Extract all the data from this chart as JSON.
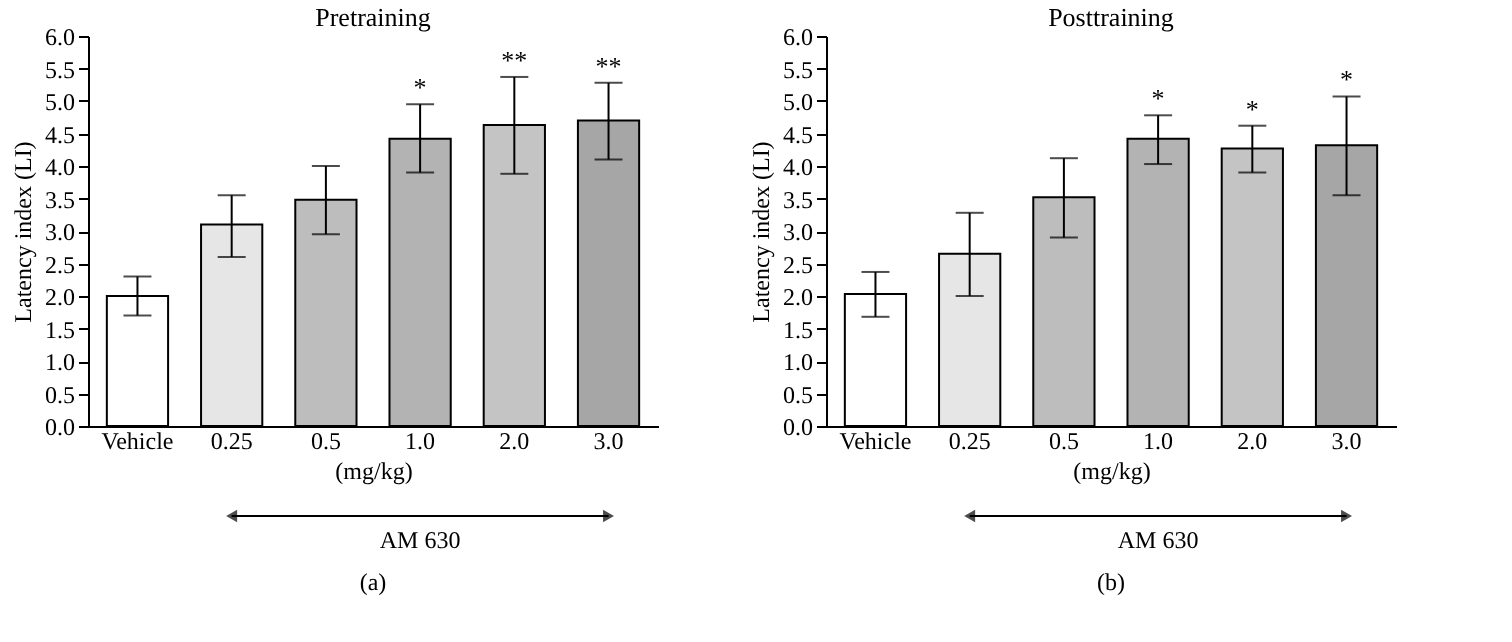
{
  "chart_data": [
    {
      "type": "bar",
      "title": "Pretraining",
      "xlabel": "(mg/kg)",
      "ylabel": "Latency index (LI)",
      "categories": [
        "Vehicle",
        "0.25",
        "0.5",
        "1.0",
        "2.0",
        "3.0"
      ],
      "values": [
        2.0,
        3.1,
        3.48,
        4.42,
        4.63,
        4.7
      ],
      "errors": [
        [
          1.7,
          2.3
        ],
        [
          2.6,
          3.55
        ],
        [
          2.95,
          4.0
        ],
        [
          3.9,
          4.95
        ],
        [
          3.88,
          5.37
        ],
        [
          4.1,
          5.28
        ]
      ],
      "colors": [
        "#ffffff",
        "#e6e6e6",
        "#bdbdbd",
        "#b3b3b3",
        "#c4c4c4",
        "#a6a6a6"
      ],
      "ylim": [
        0,
        6
      ],
      "yticks": [
        {
          "value": 0,
          "label": "0.0"
        },
        {
          "value": 0.5,
          "label": "0.5"
        },
        {
          "value": 1,
          "label": "1.0"
        },
        {
          "value": 1.5,
          "label": "1.5"
        },
        {
          "value": 2,
          "label": "2.0"
        },
        {
          "value": 2.5,
          "label": "2.5"
        },
        {
          "value": 3,
          "label": "3.0"
        },
        {
          "value": 3.5,
          "label": "3.5"
        },
        {
          "value": 4,
          "label": "4.0"
        },
        {
          "value": 4.5,
          "label": "4.5"
        },
        {
          "value": 5,
          "label": "5.0"
        },
        {
          "value": 5.5,
          "label": "5.5"
        },
        {
          "value": 6,
          "label": "6.0"
        }
      ],
      "annotations": [
        {
          "text": "*",
          "x": "1.0",
          "y": 4.95
        },
        {
          "text": "**",
          "x": "2.0",
          "y": 5.37
        },
        {
          "text": "**",
          "x": "3.0",
          "y": 5.28
        },
        "AM 630",
        "(a)"
      ],
      "grid": false,
      "legend": false
    },
    {
      "type": "bar",
      "title": "Posttraining",
      "xlabel": "(mg/kg)",
      "ylabel": "Latency index (LI)",
      "categories": [
        "Vehicle",
        "0.25",
        "0.5",
        "1.0",
        "2.0",
        "3.0"
      ],
      "values": [
        2.03,
        2.65,
        3.52,
        4.42,
        4.27,
        4.32
      ],
      "errors": [
        [
          1.68,
          2.37
        ],
        [
          2.0,
          3.28
        ],
        [
          2.9,
          4.12
        ],
        [
          4.03,
          4.78
        ],
        [
          3.9,
          4.62
        ],
        [
          3.55,
          5.07
        ]
      ],
      "colors": [
        "#ffffff",
        "#e6e6e6",
        "#bdbdbd",
        "#b3b3b3",
        "#c4c4c4",
        "#a6a6a6"
      ],
      "ylim": [
        0,
        6
      ],
      "yticks": [
        {
          "value": 0,
          "label": "0.0"
        },
        {
          "value": 0.5,
          "label": "0.5"
        },
        {
          "value": 1,
          "label": "1.0"
        },
        {
          "value": 1.5,
          "label": "1.5"
        },
        {
          "value": 2,
          "label": "2.0"
        },
        {
          "value": 2.5,
          "label": "2.5"
        },
        {
          "value": 3,
          "label": "3.0"
        },
        {
          "value": 3.5,
          "label": "3.5"
        },
        {
          "value": 4,
          "label": "4.0"
        },
        {
          "value": 4.5,
          "label": "4.5"
        },
        {
          "value": 5,
          "label": "5.0"
        },
        {
          "value": 5.5,
          "label": "5.5"
        },
        {
          "value": 6,
          "label": "6.0"
        }
      ],
      "annotations": [
        {
          "text": "*",
          "x": "1.0",
          "y": 4.78
        },
        {
          "text": "*",
          "x": "2.0",
          "y": 4.62
        },
        {
          "text": "*",
          "x": "3.0",
          "y": 5.07
        },
        "AM 630",
        "(b)"
      ],
      "grid": false,
      "legend": false
    }
  ]
}
